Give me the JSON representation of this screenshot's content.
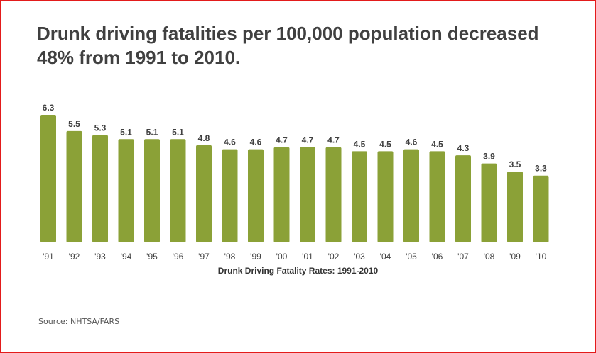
{
  "chart_data": {
    "type": "bar",
    "title": "Drunk driving fatalities per 100,000 population decreased 48% from 1991 to 2010.",
    "xlabel": "Drunk Driving Fatality Rates: 1991-2010",
    "ylabel": "",
    "ylim": [
      0,
      6.5
    ],
    "grid": false,
    "legend": "none",
    "bar_color": "#8ba137",
    "categories": [
      "'91",
      "'92",
      "'93",
      "'94",
      "'95",
      "'96",
      "'97",
      "'98",
      "'99",
      "'00",
      "'01",
      "'02",
      "'03",
      "'04",
      "'05",
      "'06",
      "'07",
      "'08",
      "'09",
      "'10"
    ],
    "values": [
      6.3,
      5.5,
      5.3,
      5.1,
      5.1,
      5.1,
      4.8,
      4.6,
      4.6,
      4.7,
      4.7,
      4.7,
      4.5,
      4.5,
      4.6,
      4.5,
      4.3,
      3.9,
      3.5,
      3.3
    ],
    "value_labels": [
      "6.3",
      "5.5",
      "5.3",
      "5.1",
      "5.1",
      "5.1",
      "4.8",
      "4.6",
      "4.6",
      "4.7",
      "4.7",
      "4.7",
      "4.5",
      "4.5",
      "4.6",
      "4.5",
      "4.3",
      "3.9",
      "3.5",
      "3.3"
    ]
  },
  "source": "Source:  NHTSA/FARS",
  "colors": {
    "border": "#e31b1b",
    "text": "#404040"
  }
}
